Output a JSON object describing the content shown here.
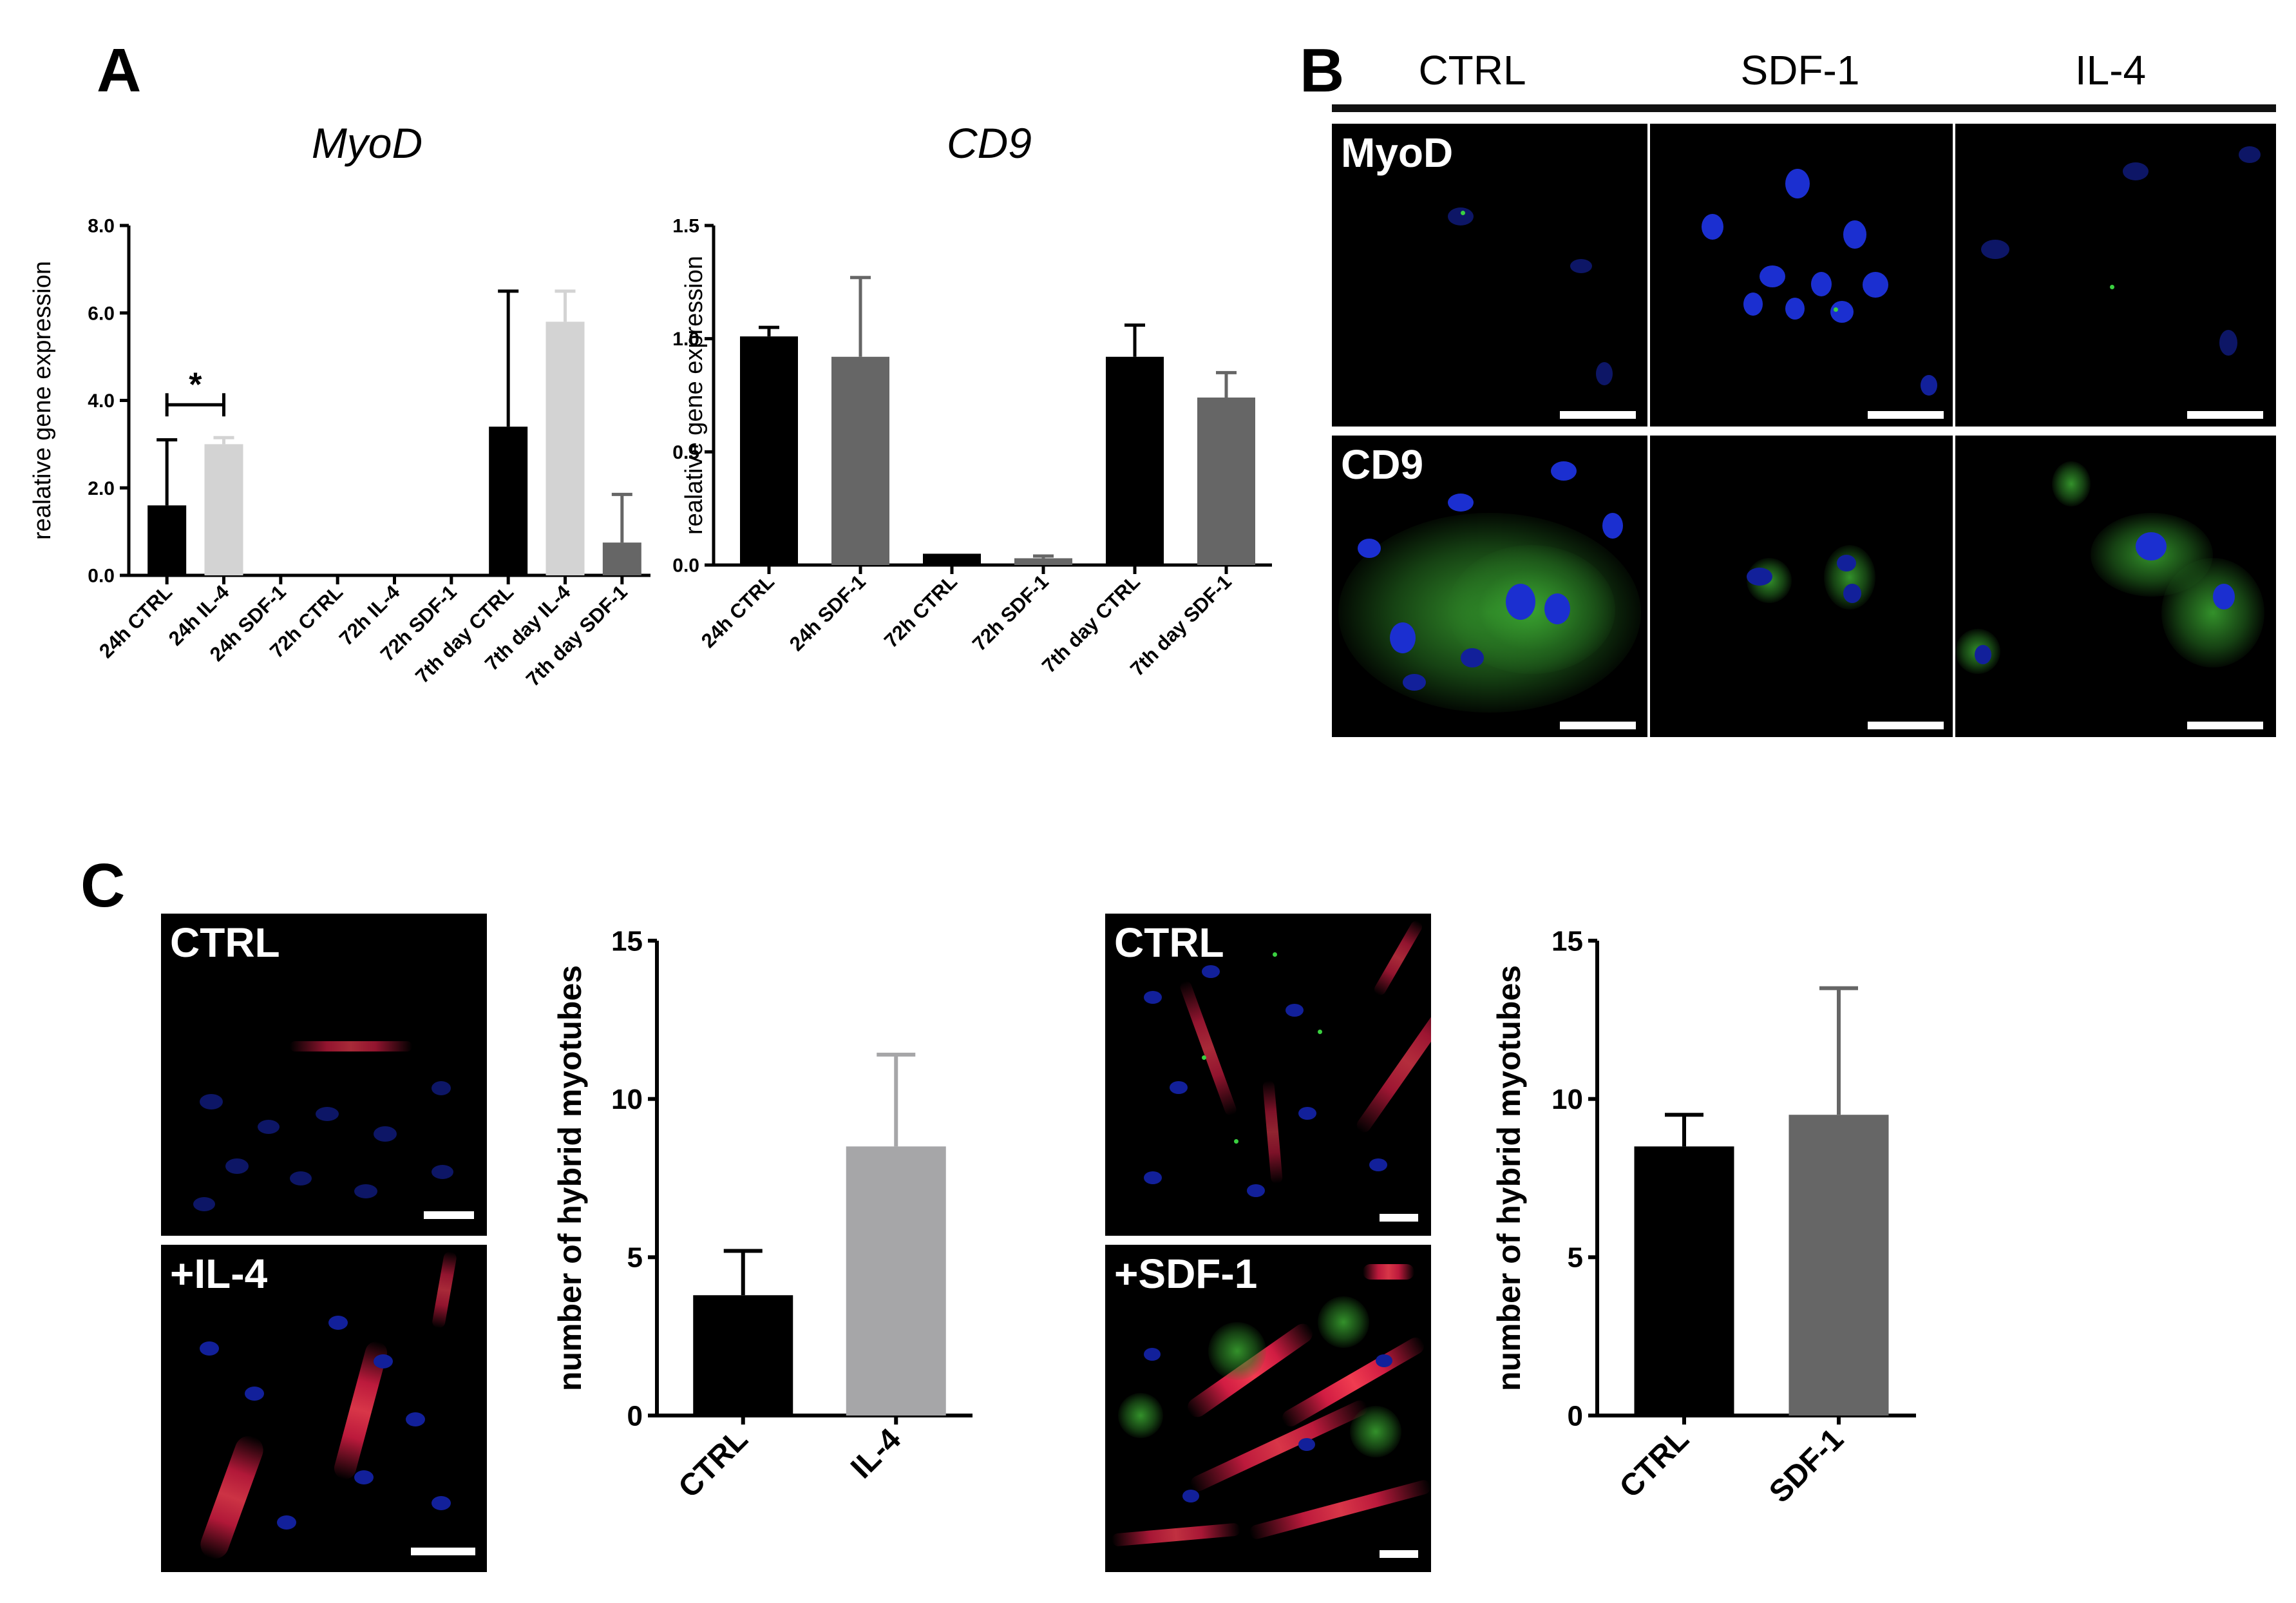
{
  "panels": {
    "A": "A",
    "B": "B",
    "C": "C"
  },
  "chart_data": [
    {
      "id": "myod",
      "type": "bar",
      "title": "MyoD",
      "ylabel": "realative gene expression",
      "ylim": [
        0,
        8
      ],
      "yticks": [
        "0.0",
        "2.0",
        "4.0",
        "6.0",
        "8.0"
      ],
      "categories": [
        "24h CTRL",
        "24h IL-4",
        "24h SDF-1",
        "72h CTRL",
        "72h IL-4",
        "72h SDF-1",
        "7th day CTRL",
        "7th day IL-4",
        "7th day SDF-1"
      ],
      "values": [
        1.6,
        3.0,
        0,
        0,
        0,
        0,
        3.4,
        5.8,
        0.75
      ],
      "errors": [
        1.5,
        0.15,
        0,
        0,
        0,
        0,
        3.1,
        0.7,
        1.1
      ],
      "colors": [
        "#000000",
        "#d3d3d3",
        "#000000",
        "#000000",
        "#000000",
        "#000000",
        "#000000",
        "#d3d3d3",
        "#666666"
      ],
      "significance": {
        "from": 0,
        "to": 1,
        "label": "*"
      }
    },
    {
      "id": "cd9",
      "type": "bar",
      "title": "CD9",
      "ylabel": "realative gene expression",
      "ylim": [
        0,
        1.5
      ],
      "yticks": [
        "0.0",
        "0.5",
        "1.0",
        "1.5"
      ],
      "categories": [
        "24h CTRL",
        "24h SDF-1",
        "72h CTRL",
        "72h SDF-1",
        "7th day CTRL",
        "7th day SDF-1"
      ],
      "values": [
        1.01,
        0.92,
        0.05,
        0.03,
        0.92,
        0.74
      ],
      "errors": [
        0.04,
        0.35,
        0.0,
        0.01,
        0.14,
        0.11
      ],
      "colors": [
        "#000000",
        "#666666",
        "#000000",
        "#666666",
        "#000000",
        "#666666"
      ]
    },
    {
      "id": "il4",
      "type": "bar",
      "title": "",
      "ylabel": "number of hybrid myotubes",
      "ylim": [
        0,
        15
      ],
      "yticks": [
        "0",
        "5",
        "10",
        "15"
      ],
      "categories": [
        "CTRL",
        "IL-4"
      ],
      "values": [
        3.8,
        8.5
      ],
      "errors": [
        1.4,
        2.9
      ],
      "colors": [
        "#000000",
        "#a6a6a8"
      ]
    },
    {
      "id": "sdf1",
      "type": "bar",
      "title": "",
      "ylabel": "number of hybrid myotubes",
      "ylim": [
        0,
        15
      ],
      "yticks": [
        "0",
        "5",
        "10",
        "15"
      ],
      "categories": [
        "CTRL",
        "SDF-1"
      ],
      "values": [
        8.5,
        9.5
      ],
      "errors": [
        1.0,
        4.0
      ],
      "colors": [
        "#000000",
        "#666666"
      ]
    }
  ],
  "panelB": {
    "columns": [
      "CTRL",
      "SDF-1",
      "IL-4"
    ],
    "rows": [
      "MyoD",
      "CD9"
    ]
  },
  "panelC": {
    "left_labels": [
      "CTRL",
      "+IL-4"
    ],
    "right_labels": [
      "CTRL",
      "+SDF-1"
    ]
  }
}
